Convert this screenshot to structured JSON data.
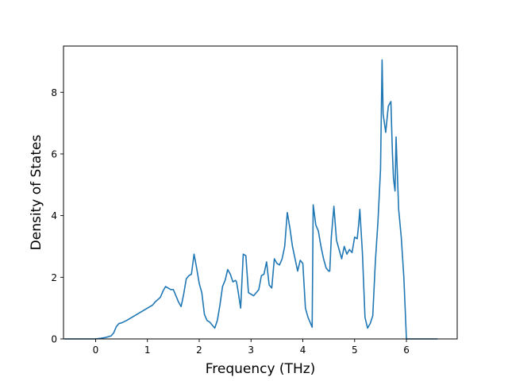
{
  "chart_data": {
    "type": "line",
    "xlabel": "Frequency (THz)",
    "ylabel": "Density of States",
    "xlim": [
      -0.62,
      6.98
    ],
    "ylim": [
      0,
      9.5
    ],
    "x_ticks": [
      0,
      1,
      2,
      3,
      4,
      5,
      6
    ],
    "y_ticks": [
      0,
      2,
      4,
      6,
      8
    ],
    "tick_labels_x": [
      "0",
      "1",
      "2",
      "3",
      "4",
      "5",
      "6"
    ],
    "tick_labels_y": [
      "0",
      "2",
      "4",
      "6",
      "8"
    ],
    "grid": false,
    "legend": "none",
    "line_color": "#1f77b4",
    "series": [
      {
        "x": [
          -0.6,
          0.0,
          0.1,
          0.2,
          0.3,
          0.35,
          0.4,
          0.45,
          0.5,
          0.6,
          0.7,
          0.8,
          0.9,
          1.0,
          1.1,
          1.15,
          1.25,
          1.3,
          1.35,
          1.45,
          1.5,
          1.55,
          1.6,
          1.65,
          1.7,
          1.75,
          1.8,
          1.85,
          1.9,
          1.95,
          2.0,
          2.05,
          2.1,
          2.15,
          2.2,
          2.25,
          2.3,
          2.35,
          2.4,
          2.45,
          2.5,
          2.55,
          2.6,
          2.65,
          2.7,
          2.72,
          2.75,
          2.8,
          2.85,
          2.9,
          2.95,
          3.0,
          3.05,
          3.1,
          3.15,
          3.2,
          3.25,
          3.3,
          3.35,
          3.4,
          3.45,
          3.5,
          3.55,
          3.6,
          3.65,
          3.7,
          3.75,
          3.8,
          3.85,
          3.9,
          3.95,
          4.0,
          4.05,
          4.1,
          4.15,
          4.18,
          4.2,
          4.25,
          4.3,
          4.35,
          4.4,
          4.45,
          4.5,
          4.52,
          4.55,
          4.6,
          4.65,
          4.7,
          4.75,
          4.8,
          4.85,
          4.9,
          4.95,
          5.0,
          5.05,
          5.08,
          5.1,
          5.15,
          5.2,
          5.25,
          5.3,
          5.35,
          5.4,
          5.45,
          5.5,
          5.53,
          5.55,
          5.6,
          5.65,
          5.7,
          5.73,
          5.75,
          5.78,
          5.8,
          5.85,
          5.9,
          5.95,
          6.0,
          6.05,
          6.3,
          6.6
        ],
        "y": [
          0,
          0,
          0.02,
          0.05,
          0.1,
          0.2,
          0.4,
          0.5,
          0.52,
          0.6,
          0.7,
          0.8,
          0.9,
          1.0,
          1.1,
          1.2,
          1.35,
          1.55,
          1.7,
          1.6,
          1.6,
          1.4,
          1.2,
          1.05,
          1.45,
          1.95,
          2.05,
          2.1,
          2.75,
          2.3,
          1.8,
          1.5,
          0.8,
          0.6,
          0.55,
          0.45,
          0.35,
          0.6,
          1.1,
          1.7,
          1.9,
          2.25,
          2.1,
          1.85,
          1.9,
          1.85,
          1.55,
          1.0,
          2.75,
          2.7,
          1.5,
          1.45,
          1.4,
          1.5,
          1.6,
          2.05,
          2.1,
          2.5,
          1.75,
          1.65,
          2.6,
          2.45,
          2.4,
          2.6,
          3.0,
          4.1,
          3.6,
          3.0,
          2.6,
          2.2,
          2.55,
          2.45,
          1.0,
          0.7,
          0.5,
          0.38,
          4.35,
          3.7,
          3.5,
          3.0,
          2.6,
          2.3,
          2.2,
          2.2,
          3.3,
          4.3,
          3.2,
          2.9,
          2.6,
          3.0,
          2.75,
          2.9,
          2.8,
          3.3,
          3.25,
          3.75,
          4.2,
          2.8,
          0.7,
          0.35,
          0.5,
          0.75,
          2.5,
          3.8,
          5.5,
          9.05,
          7.3,
          6.7,
          7.55,
          7.7,
          6.0,
          5.2,
          4.8,
          6.55,
          4.2,
          3.3,
          2.0,
          0,
          0,
          0,
          0
        ]
      }
    ]
  }
}
